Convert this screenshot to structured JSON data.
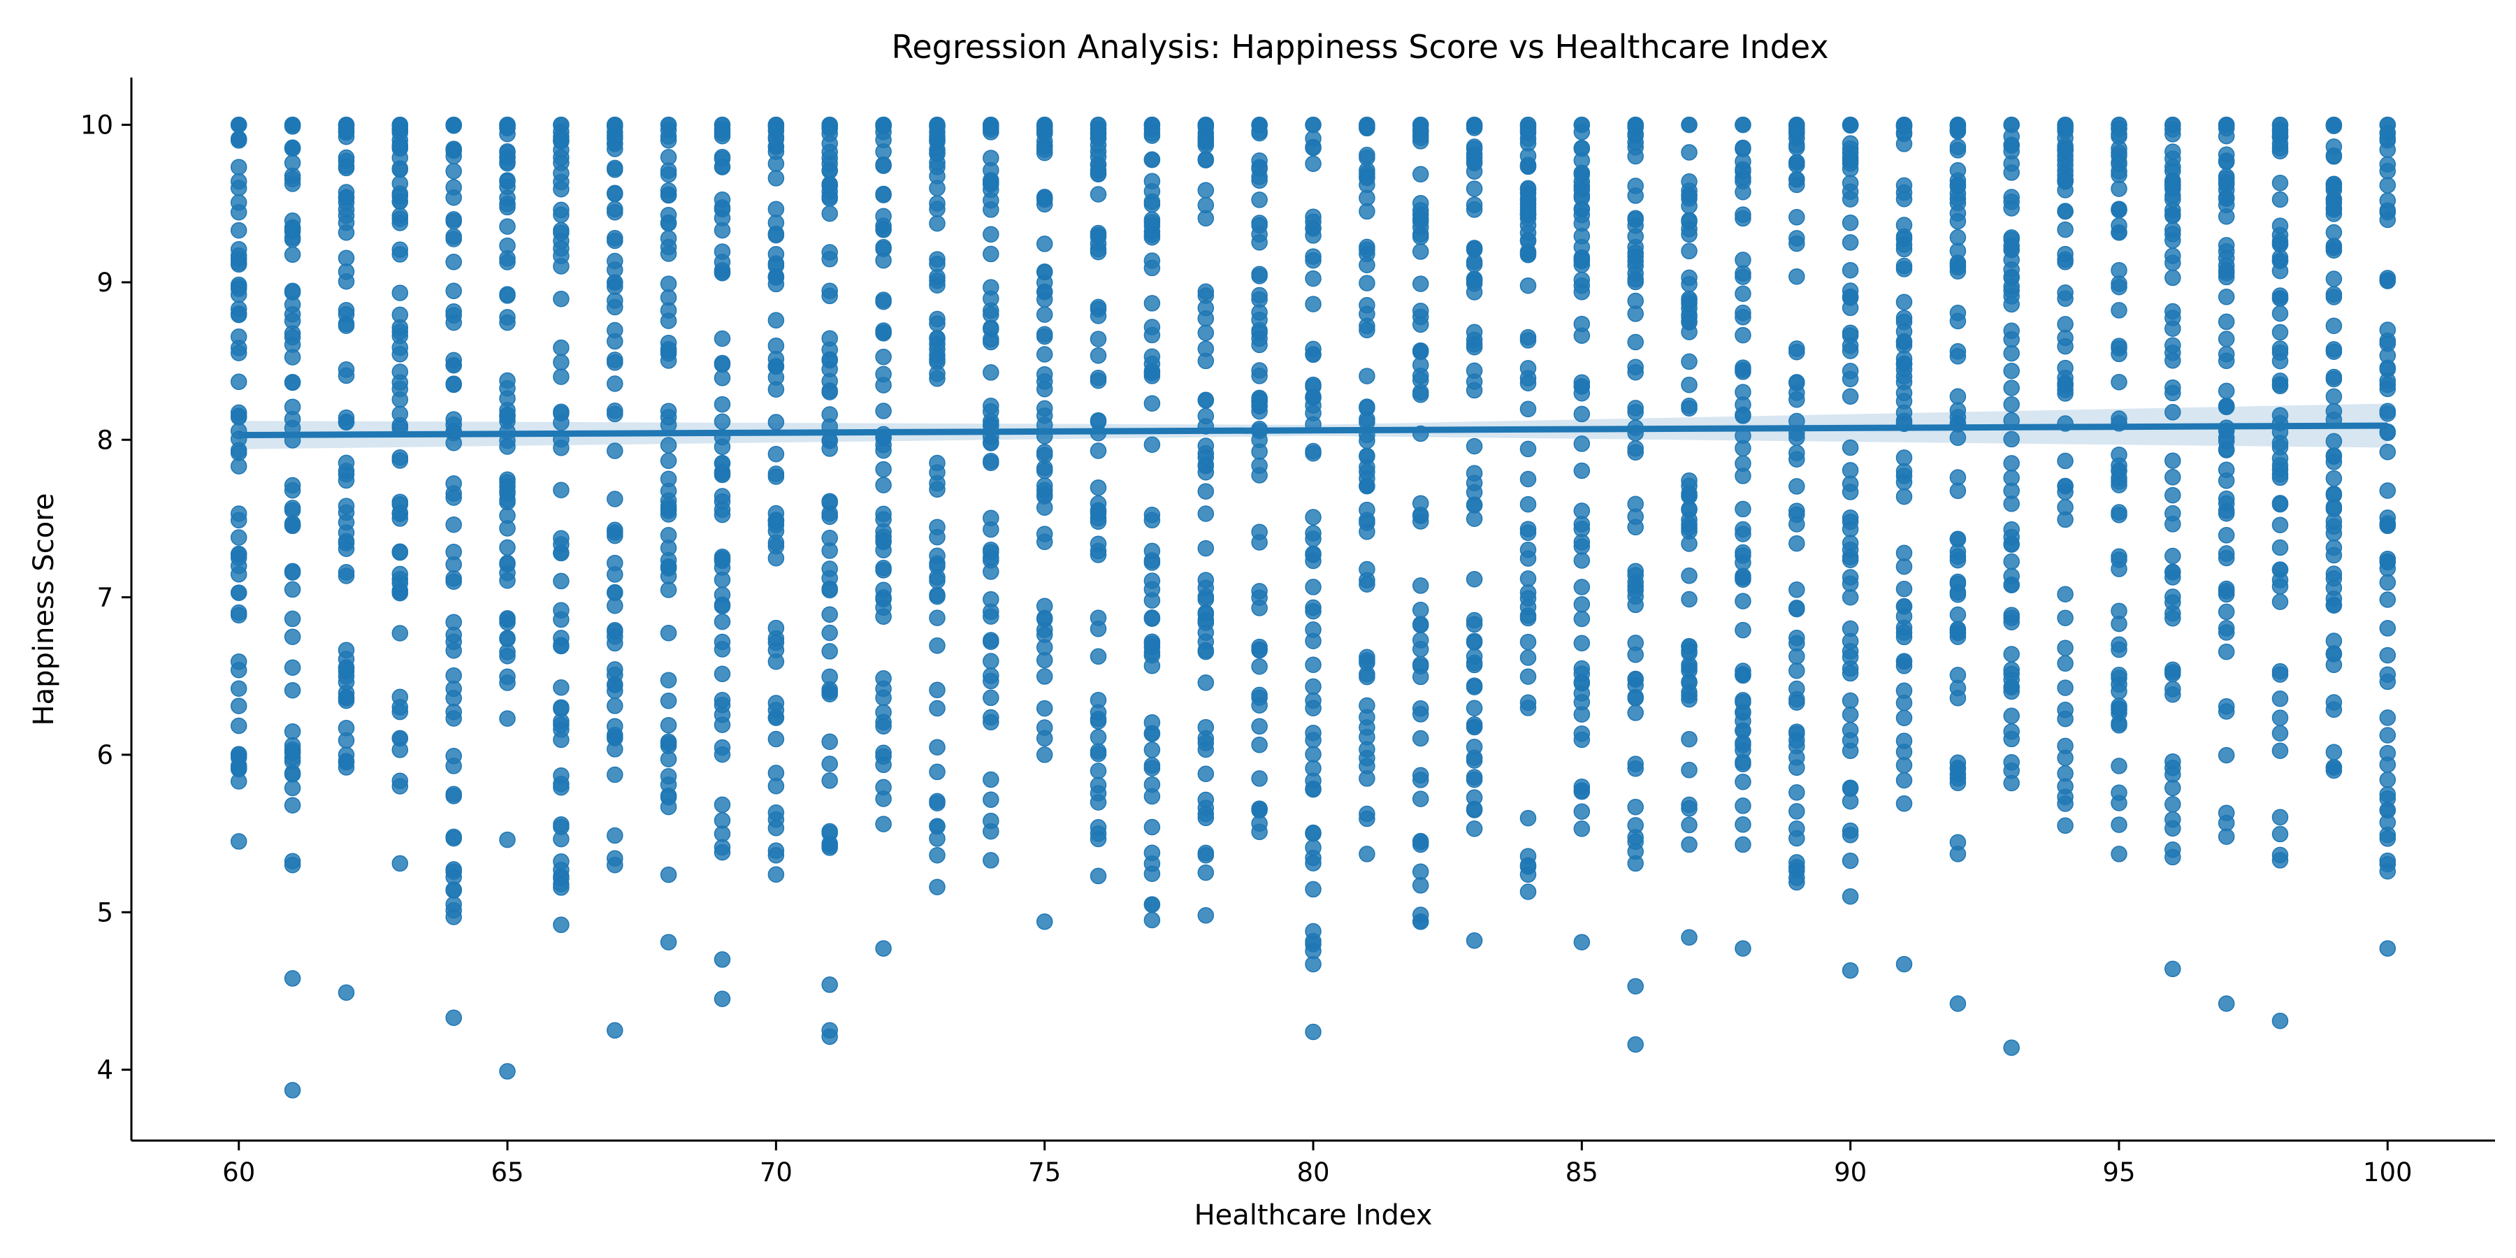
{
  "chart_data": {
    "type": "scatter",
    "title": "Regression Analysis: Happiness Score vs Healthcare Index",
    "xlabel": "Healthcare Index",
    "ylabel": "Happiness Score",
    "xlim": [
      58,
      102
    ],
    "ylim": [
      3.55,
      10.3
    ],
    "x_ticks": [
      60,
      65,
      70,
      75,
      80,
      85,
      90,
      95,
      100
    ],
    "y_ticks": [
      4,
      5,
      6,
      7,
      8,
      9,
      10
    ],
    "grid": false,
    "legend": "none",
    "colors": {
      "points": "#1f77b4",
      "line": "#1f77b4",
      "band": "#1f77b4"
    },
    "regression_line": {
      "x": [
        60,
        100
      ],
      "y": [
        8.03,
        8.09
      ]
    },
    "columns": [
      {
        "x": 60,
        "min": 5.45,
        "max": 10.0,
        "outliers": [
          6.31
        ]
      },
      {
        "x": 61,
        "min": 5.3,
        "max": 10.0,
        "outliers": [
          3.87,
          4.58
        ]
      },
      {
        "x": 62,
        "min": 5.92,
        "max": 10.0,
        "outliers": [
          4.49
        ]
      },
      {
        "x": 63,
        "min": 5.8,
        "max": 10.0,
        "outliers": [
          5.31
        ]
      },
      {
        "x": 64,
        "min": 4.97,
        "max": 10.0,
        "outliers": [
          4.33
        ]
      },
      {
        "x": 65,
        "min": 6.23,
        "max": 10.0,
        "outliers": [
          5.46,
          3.99
        ]
      },
      {
        "x": 66,
        "min": 4.92,
        "max": 10.0,
        "outliers": []
      },
      {
        "x": 67,
        "min": 5.3,
        "max": 10.0,
        "outliers": [
          4.25
        ]
      },
      {
        "x": 68,
        "min": 4.81,
        "max": 10.0,
        "outliers": []
      },
      {
        "x": 69,
        "min": 5.38,
        "max": 10.0,
        "outliers": [
          4.7,
          4.45
        ]
      },
      {
        "x": 70,
        "min": 5.24,
        "max": 10.0,
        "outliers": []
      },
      {
        "x": 71,
        "min": 5.41,
        "max": 10.0,
        "outliers": [
          4.54,
          4.25,
          4.21
        ]
      },
      {
        "x": 72,
        "min": 5.56,
        "max": 10.0,
        "outliers": [
          4.77
        ]
      },
      {
        "x": 73,
        "min": 5.16,
        "max": 10.0,
        "outliers": []
      },
      {
        "x": 74,
        "min": 5.33,
        "max": 10.0,
        "outliers": []
      },
      {
        "x": 75,
        "min": 6.0,
        "max": 10.0,
        "outliers": [
          4.94
        ]
      },
      {
        "x": 76,
        "min": 5.23,
        "max": 10.0,
        "outliers": []
      },
      {
        "x": 77,
        "min": 4.95,
        "max": 10.0,
        "outliers": []
      },
      {
        "x": 78,
        "min": 4.98,
        "max": 10.0,
        "outliers": []
      },
      {
        "x": 79,
        "min": 5.51,
        "max": 10.0,
        "outliers": []
      },
      {
        "x": 80,
        "min": 4.67,
        "max": 10.0,
        "outliers": [
          4.24
        ]
      },
      {
        "x": 81,
        "min": 5.37,
        "max": 10.0,
        "outliers": []
      },
      {
        "x": 82,
        "min": 4.94,
        "max": 10.0,
        "outliers": []
      },
      {
        "x": 83,
        "min": 5.53,
        "max": 10.0,
        "outliers": [
          4.82
        ]
      },
      {
        "x": 84,
        "min": 5.13,
        "max": 10.0,
        "outliers": []
      },
      {
        "x": 85,
        "min": 5.53,
        "max": 10.0,
        "outliers": [
          4.81
        ]
      },
      {
        "x": 86,
        "min": 5.31,
        "max": 10.0,
        "outliers": [
          4.53,
          4.16
        ]
      },
      {
        "x": 87,
        "min": 5.43,
        "max": 10.0,
        "outliers": [
          4.84
        ]
      },
      {
        "x": 88,
        "min": 5.43,
        "max": 10.0,
        "outliers": [
          4.77
        ]
      },
      {
        "x": 89,
        "min": 5.19,
        "max": 10.0,
        "outliers": []
      },
      {
        "x": 90,
        "min": 5.1,
        "max": 10.0,
        "outliers": [
          4.63
        ]
      },
      {
        "x": 91,
        "min": 5.69,
        "max": 10.0,
        "outliers": [
          4.67
        ]
      },
      {
        "x": 92,
        "min": 5.37,
        "max": 10.0,
        "outliers": [
          4.42
        ]
      },
      {
        "x": 93,
        "min": 5.82,
        "max": 10.0,
        "outliers": [
          4.14
        ]
      },
      {
        "x": 94,
        "min": 5.55,
        "max": 10.0,
        "outliers": []
      },
      {
        "x": 95,
        "min": 5.37,
        "max": 10.0,
        "outliers": []
      },
      {
        "x": 96,
        "min": 5.35,
        "max": 10.0,
        "outliers": [
          4.64
        ]
      },
      {
        "x": 97,
        "min": 5.48,
        "max": 10.0,
        "outliers": [
          4.42
        ]
      },
      {
        "x": 98,
        "min": 5.33,
        "max": 10.0,
        "outliers": [
          4.31
        ]
      },
      {
        "x": 99,
        "min": 5.9,
        "max": 10.0,
        "outliers": []
      },
      {
        "x": 100,
        "min": 5.26,
        "max": 10.0,
        "outliers": [
          4.77
        ]
      }
    ]
  }
}
